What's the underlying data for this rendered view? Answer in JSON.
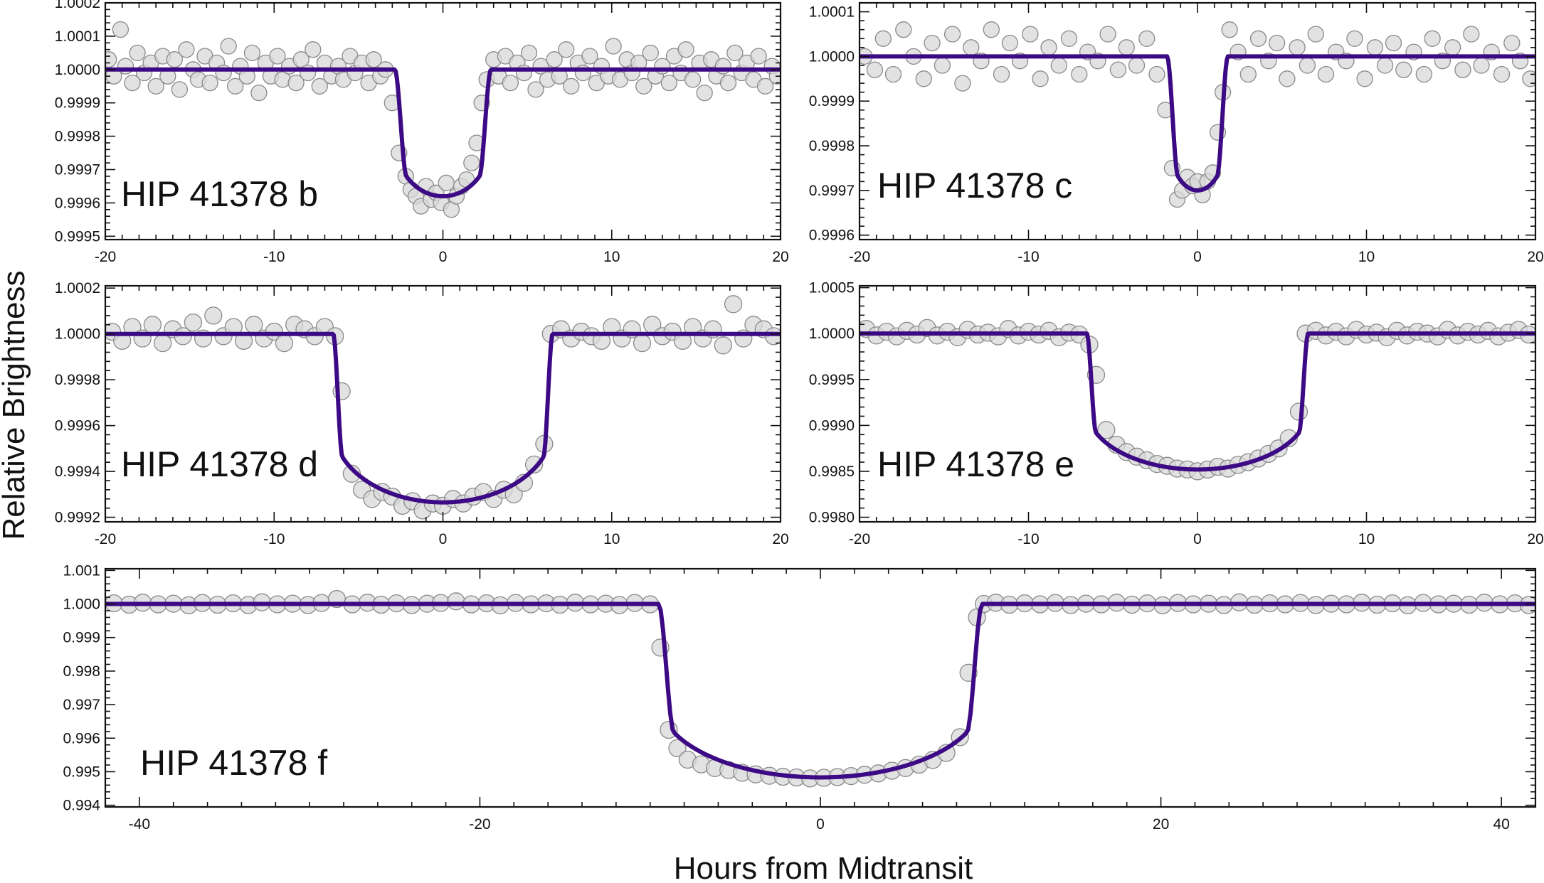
{
  "figure": {
    "ylabel": "Relative Brightness",
    "xlabel": "Hours from Midtransit"
  },
  "colors": {
    "model": "#3d0a85",
    "points_fill": "#d8d8d8",
    "points_stroke": "#8a8a8a",
    "axes": "#111111"
  },
  "chart_data": [
    {
      "type": "scatter",
      "id": "b",
      "label": "HIP 41378 b",
      "xlim": [
        -20,
        20
      ],
      "ylim": [
        0.99949,
        1.0002
      ],
      "xticks": [
        -20,
        -10,
        0,
        10,
        20
      ],
      "xtick_labels": [
        "-20",
        "-10",
        "0",
        "10",
        "20"
      ],
      "yticks": [
        0.9995,
        0.9996,
        0.9997,
        0.9998,
        0.9999,
        1.0,
        1.0001,
        1.0002
      ],
      "ytick_labels": [
        "0.9995",
        "0.9996",
        "0.9997",
        "0.9998",
        "0.9999",
        "1.0000",
        "1.0001",
        "1.0002"
      ],
      "model": {
        "depth": 0.00038,
        "t14": 5.7,
        "t23": 4.3
      },
      "points": {
        "x": [
          -19.8,
          -19.5,
          -19.1,
          -18.8,
          -18.4,
          -18.1,
          -17.7,
          -17.3,
          -17.0,
          -16.6,
          -16.3,
          -15.9,
          -15.6,
          -15.2,
          -14.8,
          -14.5,
          -14.1,
          -13.8,
          -13.4,
          -13.0,
          -12.7,
          -12.3,
          -12.0,
          -11.6,
          -11.3,
          -10.9,
          -10.5,
          -10.2,
          -9.8,
          -9.5,
          -9.1,
          -8.7,
          -8.4,
          -8.0,
          -7.7,
          -7.3,
          -7.0,
          -6.6,
          -6.2,
          -5.9,
          -5.5,
          -5.2,
          -4.8,
          -4.4,
          -4.1,
          -3.7,
          -3.4,
          -3.0,
          -2.6,
          -2.2,
          -1.9,
          -1.6,
          -1.3,
          -1.0,
          -0.7,
          -0.4,
          -0.1,
          0.2,
          0.5,
          0.8,
          1.1,
          1.4,
          1.7,
          2.0,
          2.3,
          2.6,
          3.0,
          3.3,
          3.7,
          4.0,
          4.4,
          4.8,
          5.1,
          5.5,
          5.8,
          6.2,
          6.6,
          6.9,
          7.3,
          7.6,
          8.0,
          8.3,
          8.7,
          9.1,
          9.4,
          9.8,
          10.1,
          10.5,
          10.9,
          11.2,
          11.6,
          11.9,
          12.3,
          12.6,
          13.0,
          13.4,
          13.7,
          14.1,
          14.4,
          14.8,
          15.2,
          15.5,
          15.9,
          16.2,
          16.6,
          16.9,
          17.3,
          17.7,
          18.0,
          18.4,
          18.7,
          19.1,
          19.5,
          19.8
        ],
        "y": [
          1.00003,
          0.99998,
          1.00012,
          1.00001,
          0.99996,
          1.00005,
          0.99999,
          1.00002,
          0.99995,
          1.00004,
          0.99998,
          1.00003,
          0.99994,
          1.00006,
          1.0,
          0.99997,
          1.00004,
          0.99996,
          1.00002,
          0.99999,
          1.00007,
          0.99995,
          1.00001,
          0.99998,
          1.00005,
          0.99993,
          1.00002,
          0.99998,
          1.00004,
          0.99997,
          1.00001,
          0.99996,
          1.00003,
          0.99999,
          1.00006,
          0.99995,
          1.00002,
          0.99998,
          1.00001,
          0.99997,
          1.00004,
          0.99999,
          1.00002,
          0.99996,
          1.00003,
          0.99998,
          1.0,
          0.9999,
          0.99975,
          0.99968,
          0.99964,
          0.99962,
          0.99959,
          0.99965,
          0.99961,
          0.99963,
          0.9996,
          0.99966,
          0.99958,
          0.99962,
          0.99965,
          0.99967,
          0.99972,
          0.99978,
          0.9999,
          0.99997,
          1.00003,
          0.99998,
          1.00004,
          0.99996,
          1.00002,
          0.99999,
          1.00005,
          0.99994,
          1.00001,
          0.99997,
          1.00003,
          0.99998,
          1.00006,
          0.99995,
          1.00002,
          0.99999,
          1.00004,
          0.99996,
          1.00001,
          0.99998,
          1.00007,
          0.99997,
          1.00003,
          0.99999,
          1.00002,
          0.99995,
          1.00005,
          0.99998,
          1.00001,
          0.99996,
          1.00004,
          0.99999,
          1.00006,
          0.99997,
          1.00002,
          0.99993,
          1.00003,
          0.99998,
          1.00001,
          0.99996,
          1.00005,
          0.99999,
          1.00002,
          0.99997,
          1.00004,
          0.99995,
          1.00001,
          0.99998
        ]
      }
    },
    {
      "type": "scatter",
      "id": "c",
      "label": "HIP 41378 c",
      "xlim": [
        -20,
        20
      ],
      "ylim": [
        0.99959,
        1.00012
      ],
      "xticks": [
        -20,
        -10,
        0,
        10,
        20
      ],
      "xtick_labels": [
        "-20",
        "-10",
        "0",
        "10",
        "20"
      ],
      "yticks": [
        0.9996,
        0.9997,
        0.9998,
        0.9999,
        1.0,
        1.0001
      ],
      "ytick_labels": [
        "0.9996",
        "0.9997",
        "0.9998",
        "0.9999",
        "1.0000",
        "1.0001"
      ],
      "model": {
        "depth": 0.0003,
        "t14": 3.6,
        "t23": 2.3
      },
      "points": {
        "x": [
          -19.7,
          -19.1,
          -18.6,
          -18.0,
          -17.4,
          -16.8,
          -16.2,
          -15.7,
          -15.1,
          -14.5,
          -13.9,
          -13.4,
          -12.8,
          -12.2,
          -11.6,
          -11.1,
          -10.5,
          -9.9,
          -9.3,
          -8.8,
          -8.2,
          -7.6,
          -7.0,
          -6.5,
          -5.9,
          -5.3,
          -4.7,
          -4.2,
          -3.6,
          -3.0,
          -2.4,
          -1.9,
          -1.5,
          -1.2,
          -0.9,
          -0.6,
          -0.3,
          0.0,
          0.3,
          0.6,
          0.9,
          1.2,
          1.5,
          1.9,
          2.4,
          3.0,
          3.6,
          4.2,
          4.7,
          5.3,
          5.9,
          6.5,
          7.0,
          7.6,
          8.2,
          8.8,
          9.3,
          9.9,
          10.5,
          11.1,
          11.6,
          12.2,
          12.8,
          13.4,
          13.9,
          14.5,
          15.1,
          15.7,
          16.2,
          16.8,
          17.4,
          18.0,
          18.6,
          19.1,
          19.7
        ],
        "y": [
          1.0,
          0.99997,
          1.00004,
          0.99996,
          1.00006,
          1.0,
          0.99995,
          1.00003,
          0.99998,
          1.00005,
          0.99994,
          1.00002,
          0.99999,
          1.00006,
          0.99996,
          1.00003,
          0.99999,
          1.00005,
          0.99995,
          1.00002,
          0.99998,
          1.00004,
          0.99996,
          1.00001,
          0.99999,
          1.00005,
          0.99997,
          1.00002,
          0.99998,
          1.00004,
          0.99996,
          0.99988,
          0.99975,
          0.99968,
          0.9997,
          0.99973,
          0.99971,
          0.99972,
          0.99969,
          0.99972,
          0.99974,
          0.99983,
          0.99992,
          1.00006,
          1.00001,
          0.99996,
          1.00004,
          0.99999,
          1.00003,
          0.99995,
          1.00002,
          0.99998,
          1.00005,
          0.99996,
          1.00001,
          0.99999,
          1.00004,
          0.99995,
          1.00002,
          0.99998,
          1.00003,
          0.99997,
          1.00001,
          0.99996,
          1.00004,
          0.99999,
          1.00002,
          0.99997,
          1.00005,
          0.99998,
          1.00001,
          0.99996,
          1.00003,
          0.99999,
          0.99995
        ]
      }
    },
    {
      "type": "scatter",
      "id": "d",
      "label": "HIP 41378 d",
      "xlim": [
        -20,
        20
      ],
      "ylim": [
        0.99918,
        1.00021
      ],
      "xticks": [
        -20,
        -10,
        0,
        10,
        20
      ],
      "xtick_labels": [
        "-20",
        "-10",
        "0",
        "10",
        "20"
      ],
      "yticks": [
        0.9992,
        0.9994,
        0.9996,
        0.9998,
        1.0,
        1.0002
      ],
      "ytick_labels": [
        "0.9992",
        "0.9994",
        "0.9996",
        "0.9998",
        "1.0000",
        "1.0002"
      ],
      "model": {
        "depth": 0.000735,
        "t14": 13.0,
        "t23": 11.9
      },
      "points": {
        "x": [
          -19.6,
          -19.0,
          -18.4,
          -17.8,
          -17.2,
          -16.6,
          -16.0,
          -15.4,
          -14.8,
          -14.2,
          -13.6,
          -13.0,
          -12.4,
          -11.8,
          -11.2,
          -10.6,
          -10.0,
          -9.4,
          -8.8,
          -8.2,
          -7.6,
          -7.0,
          -6.4,
          -6.0,
          -5.4,
          -4.8,
          -4.2,
          -3.6,
          -3.0,
          -2.4,
          -1.8,
          -1.2,
          -0.6,
          0.0,
          0.6,
          1.2,
          1.8,
          2.4,
          3.0,
          3.6,
          4.2,
          4.8,
          5.4,
          6.0,
          6.4,
          7.0,
          7.6,
          8.2,
          8.8,
          9.4,
          10.0,
          10.6,
          11.2,
          11.8,
          12.4,
          13.0,
          13.6,
          14.2,
          14.8,
          15.4,
          16.0,
          16.6,
          17.2,
          17.8,
          18.4,
          19.0,
          19.6
        ],
        "y": [
          1.00001,
          0.99997,
          1.00003,
          0.99998,
          1.00004,
          0.99996,
          1.00002,
          0.99999,
          1.00005,
          0.99998,
          1.00008,
          0.99999,
          1.00003,
          0.99997,
          1.00004,
          0.99998,
          1.00001,
          0.99996,
          1.00004,
          1.00002,
          0.99999,
          1.00003,
          0.99999,
          0.99975,
          0.99939,
          0.99932,
          0.99928,
          0.99931,
          0.99929,
          0.99925,
          0.99927,
          0.99923,
          0.99926,
          0.99925,
          0.99928,
          0.99926,
          0.99929,
          0.99931,
          0.99928,
          0.99932,
          0.9993,
          0.99935,
          0.99943,
          0.99952,
          1.0,
          1.00002,
          0.99998,
          1.00001,
          0.99999,
          0.99997,
          1.00003,
          0.99998,
          1.00002,
          0.99996,
          1.00004,
          0.99999,
          1.00001,
          0.99997,
          1.00003,
          0.99998,
          1.00002,
          0.99995,
          1.00013,
          0.99998,
          1.00004,
          1.00002,
          0.99999
        ]
      }
    },
    {
      "type": "scatter",
      "id": "e",
      "label": "HIP 41378 e",
      "xlim": [
        -20,
        20
      ],
      "ylim": [
        0.99795,
        1.00052
      ],
      "xticks": [
        -20,
        -10,
        0,
        10,
        20
      ],
      "xtick_labels": [
        "-20",
        "-10",
        "0",
        "10",
        "20"
      ],
      "yticks": [
        0.998,
        0.9985,
        0.999,
        0.9995,
        1.0,
        1.0005
      ],
      "ytick_labels": [
        "0.9980",
        "0.9985",
        "0.9990",
        "0.9995",
        "1.0000",
        "1.0005"
      ],
      "model": {
        "depth": 0.00148,
        "t14": 13.1,
        "t23": 12.0
      },
      "points": {
        "x": [
          -19.6,
          -19.0,
          -18.4,
          -17.8,
          -17.2,
          -16.6,
          -16.0,
          -15.4,
          -14.8,
          -14.2,
          -13.6,
          -13.0,
          -12.4,
          -11.8,
          -11.2,
          -10.6,
          -10.0,
          -9.4,
          -8.8,
          -8.2,
          -7.6,
          -7.0,
          -6.4,
          -6.0,
          -5.4,
          -4.8,
          -4.2,
          -3.6,
          -3.0,
          -2.4,
          -1.8,
          -1.2,
          -0.6,
          0.0,
          0.6,
          1.2,
          1.8,
          2.4,
          3.0,
          3.6,
          4.2,
          4.8,
          5.4,
          6.0,
          6.4,
          7.0,
          7.6,
          8.2,
          8.8,
          9.4,
          10.0,
          10.6,
          11.2,
          11.8,
          12.4,
          13.0,
          13.6,
          14.2,
          14.8,
          15.4,
          16.0,
          16.6,
          17.2,
          17.8,
          18.4,
          19.0,
          19.6
        ],
        "y": [
          1.00005,
          0.99998,
          1.00002,
          0.99997,
          1.00003,
          0.99999,
          1.00006,
          0.99998,
          1.00002,
          0.99996,
          1.00004,
          0.99999,
          1.00001,
          0.99997,
          1.00005,
          0.99998,
          1.00002,
          0.99999,
          1.00003,
          0.99996,
          1.00001,
          0.99999,
          0.99988,
          0.99955,
          0.99895,
          0.99879,
          0.99871,
          0.99866,
          0.99862,
          0.99858,
          0.99856,
          0.99853,
          0.99852,
          0.9985,
          0.99852,
          0.99855,
          0.99853,
          0.99857,
          0.9986,
          0.99864,
          0.99869,
          0.99875,
          0.99886,
          0.99915,
          1.0,
          1.00003,
          0.99998,
          1.00002,
          0.99997,
          1.00004,
          0.99999,
          1.00001,
          0.99996,
          1.00003,
          0.99998,
          1.00002,
          1.0,
          0.99997,
          1.00004,
          0.99998,
          1.00002,
          0.99999,
          1.00003,
          0.99997,
          1.00001,
          1.00004,
          0.99999
        ]
      }
    },
    {
      "type": "scatter",
      "id": "f",
      "label": "HIP 41378 f",
      "xlim": [
        -42,
        42
      ],
      "ylim": [
        0.99395,
        1.00105
      ],
      "xticks": [
        -40,
        -20,
        0,
        20,
        40
      ],
      "xtick_labels": [
        "-40",
        "-20",
        "0",
        "20",
        "40"
      ],
      "yticks": [
        0.994,
        0.995,
        0.996,
        0.997,
        0.998,
        0.999,
        1.0,
        1.001
      ],
      "ytick_labels": [
        "0.994",
        "0.995",
        "0.996",
        "0.997",
        "0.998",
        "0.999",
        "1.000",
        "1.001"
      ],
      "model": {
        "depth": 0.00517,
        "t14": 19.0,
        "t23": 17.2
      },
      "points": {
        "x": [
          -41.5,
          -40.6,
          -39.8,
          -38.9,
          -38.0,
          -37.1,
          -36.3,
          -35.4,
          -34.5,
          -33.6,
          -32.8,
          -31.9,
          -31.0,
          -30.1,
          -29.3,
          -28.4,
          -27.5,
          -26.6,
          -25.8,
          -24.9,
          -24.0,
          -23.1,
          -22.3,
          -21.4,
          -20.5,
          -19.6,
          -18.8,
          -17.9,
          -17.0,
          -16.1,
          -15.3,
          -14.4,
          -13.5,
          -12.6,
          -11.8,
          -10.9,
          -10.0,
          -9.4,
          -8.9,
          -8.4,
          -7.8,
          -7.0,
          -6.2,
          -5.4,
          -4.6,
          -3.8,
          -3.0,
          -2.2,
          -1.4,
          -0.6,
          0.2,
          1.0,
          1.8,
          2.6,
          3.4,
          4.2,
          5.0,
          5.8,
          6.6,
          7.4,
          8.2,
          8.7,
          9.2,
          9.6,
          10.3,
          11.1,
          12.0,
          12.9,
          13.8,
          14.7,
          15.6,
          16.5,
          17.4,
          18.3,
          19.2,
          20.1,
          21.0,
          21.9,
          22.8,
          23.7,
          24.6,
          25.5,
          26.4,
          27.3,
          28.2,
          29.1,
          30.0,
          30.9,
          31.8,
          32.7,
          33.6,
          34.5,
          35.4,
          36.3,
          37.2,
          38.1,
          39.0,
          39.9,
          40.8,
          41.6
        ],
        "y": [
          1.00002,
          0.99998,
          1.00004,
          0.99999,
          1.00001,
          0.99996,
          1.00003,
          0.99998,
          1.00002,
          0.99997,
          1.00005,
          0.99999,
          1.00001,
          0.99997,
          1.00003,
          1.00015,
          0.99999,
          1.00004,
          0.99998,
          1.00002,
          0.99997,
          1.00001,
          1.00003,
          1.00008,
          0.99999,
          1.00002,
          0.99996,
          1.00003,
          0.99999,
          1.00002,
          0.99998,
          1.00004,
          0.99999,
          1.00001,
          0.99997,
          1.00003,
          0.99999,
          0.9987,
          0.99625,
          0.9957,
          0.99536,
          0.99522,
          0.99511,
          0.99505,
          0.99497,
          0.99492,
          0.99488,
          0.99485,
          0.99483,
          0.9948,
          0.99482,
          0.99484,
          0.99487,
          0.99491,
          0.99495,
          0.99503,
          0.99511,
          0.99521,
          0.99535,
          0.99556,
          0.99603,
          0.99795,
          0.9996,
          1.0,
          1.00004,
          0.99998,
          1.00002,
          0.99999,
          1.00003,
          0.99997,
          1.00001,
          0.99999,
          1.00004,
          0.99998,
          1.00002,
          0.99996,
          1.00003,
          0.99999,
          1.00001,
          0.99997,
          1.00005,
          0.99998,
          1.00002,
          0.99999,
          1.00003,
          0.99997,
          1.00001,
          0.99999,
          1.00004,
          0.99998,
          1.00002,
          0.99996,
          1.00003,
          0.99999,
          1.00001,
          0.99998,
          1.00004,
          0.99999,
          1.00002,
          0.99997
        ]
      }
    }
  ]
}
